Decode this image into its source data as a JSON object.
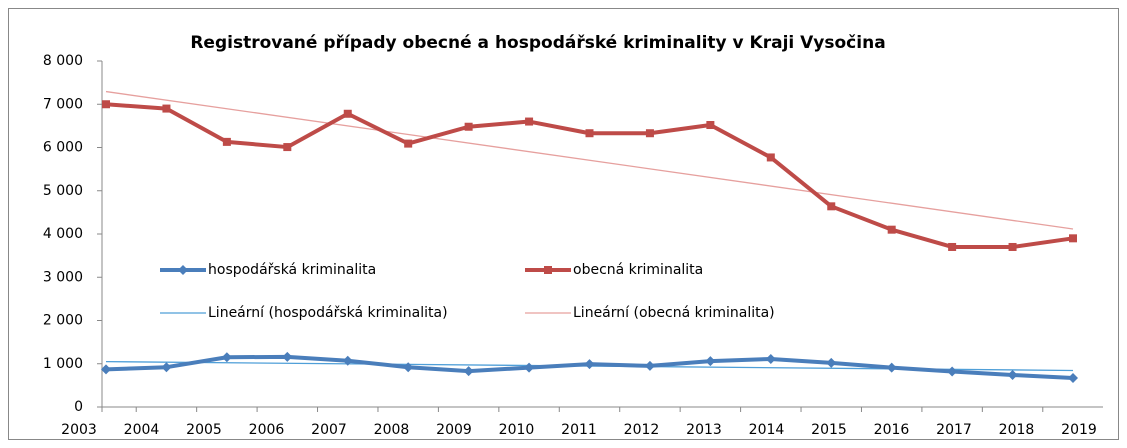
{
  "chart_data": {
    "type": "line",
    "title": "Registrované případy obecné a hospodářské kriminality  v Kraji Vysočina",
    "categories": [
      "2003",
      "2004",
      "2005",
      "2006",
      "2007",
      "2008",
      "2009",
      "2010",
      "2011",
      "2012",
      "2013",
      "2014",
      "2015",
      "2016",
      "2017",
      "2018",
      "2019"
    ],
    "series": [
      {
        "name": "hospodářská kriminalita",
        "color": "#4a7ebb",
        "marker": "diamond",
        "values": [
          870,
          920,
          1150,
          1160,
          1070,
          920,
          830,
          910,
          990,
          950,
          1060,
          1110,
          1020,
          910,
          820,
          740,
          670
        ],
        "trendline": {
          "name": "Lineární (hospodářská kriminalita)",
          "color": "#4f9fd8"
        }
      },
      {
        "name": "obecná kriminalita",
        "color": "#be4b48",
        "marker": "square",
        "values": [
          7000,
          6900,
          6130,
          6010,
          6780,
          6090,
          6480,
          6600,
          6330,
          6330,
          6520,
          5770,
          4640,
          4100,
          3700,
          3700,
          3900
        ],
        "trendline": {
          "name": "Lineární (obecná kriminalita)",
          "color": "#e6a09e"
        }
      }
    ],
    "ylim": [
      0,
      8000
    ],
    "yticks": [
      {
        "value": 0,
        "label": "0"
      },
      {
        "value": 1000,
        "label": "1 000"
      },
      {
        "value": 2000,
        "label": "2 000"
      },
      {
        "value": 3000,
        "label": "3 000"
      },
      {
        "value": 4000,
        "label": "4 000"
      },
      {
        "value": 5000,
        "label": "5 000"
      },
      {
        "value": 6000,
        "label": "6 000"
      },
      {
        "value": 7000,
        "label": "7 000"
      },
      {
        "value": 8000,
        "label": "8 000"
      }
    ],
    "grid": false
  }
}
